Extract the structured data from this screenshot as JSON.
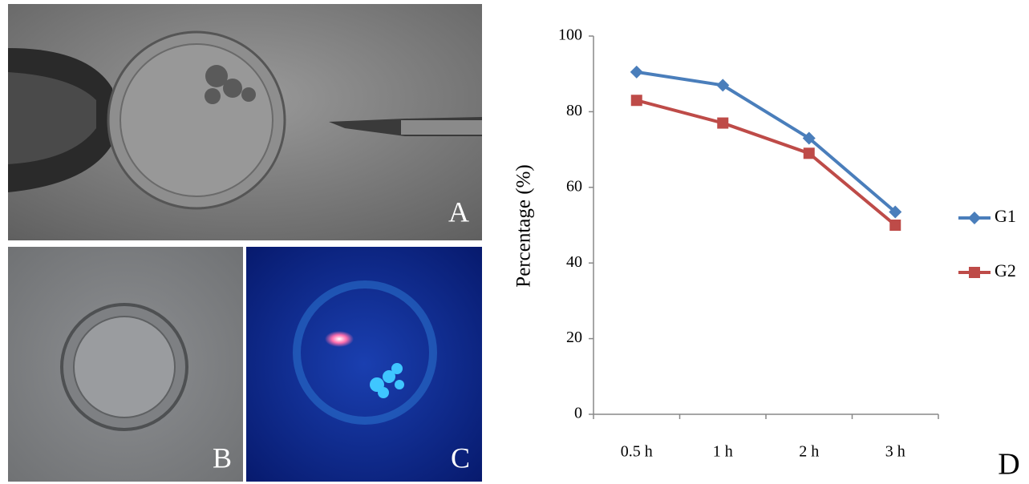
{
  "chart_data": {
    "type": "line",
    "y_label": "Percentage (%)",
    "categories": [
      "0.5 h",
      "1 h",
      "2 h",
      "3 h"
    ],
    "series": [
      {
        "name": "G1",
        "color": "#4a7ebb",
        "marker": "diamond",
        "values": [
          90.5,
          87,
          73,
          53.5
        ]
      },
      {
        "name": "G2",
        "color": "#be4b48",
        "marker": "square",
        "values": [
          83,
          77,
          69,
          50
        ]
      }
    ],
    "ylim": [
      0,
      100
    ],
    "yticks": [
      0,
      20,
      40,
      60,
      80,
      100
    ],
    "grid": false,
    "legend": "right"
  },
  "panel_labels": [
    "A",
    "B",
    "C",
    "D"
  ]
}
